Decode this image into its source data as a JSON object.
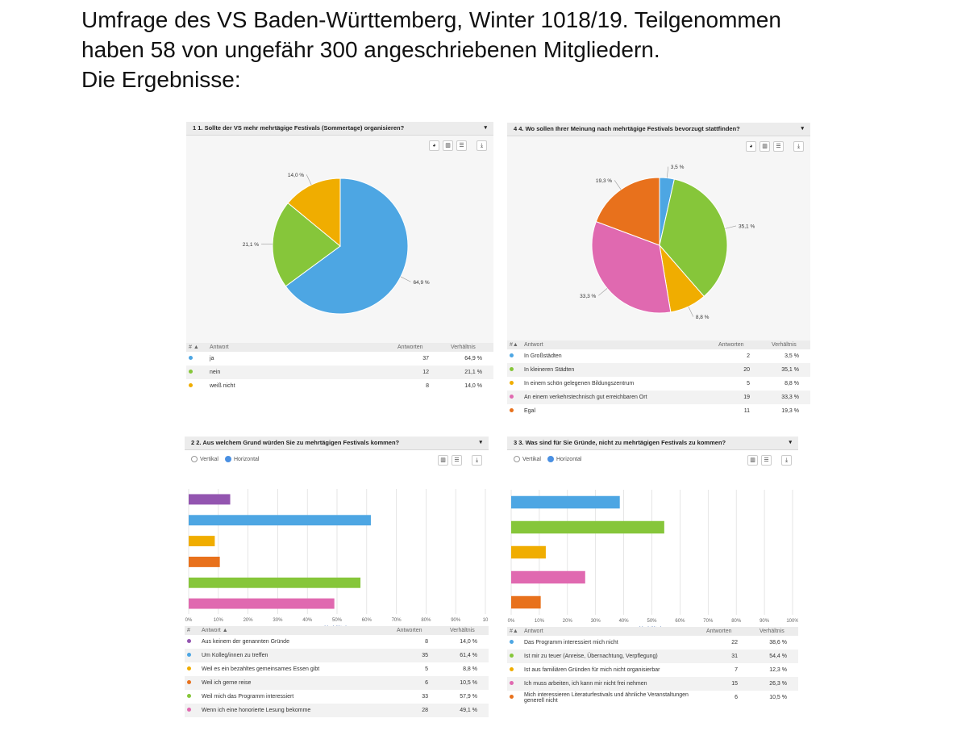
{
  "intro": {
    "line1": "Umfrage des VS Baden-Württemberg, Winter 1018/19. Teilgenommen",
    "line2": "haben 58 von ungefähr 300 angeschriebenen Mitgliedern.",
    "line3": "Die Ergebnisse:"
  },
  "ui": {
    "caret": "▾",
    "pie_icon": "◕",
    "bar_icon": "▥",
    "table_icon": "☰",
    "download_icon": "⤓",
    "vertical": "Vertikal",
    "horizontal": "Horizontal",
    "col_hash": "#",
    "col_answer": "Antwort",
    "col_answers": "Antworten",
    "col_ratio": "Verhältnis",
    "axis_label": "Verhältnis",
    "sort_asc": "▲"
  },
  "chart_data": [
    {
      "type": "pie",
      "title": "1 1. Sollte der VS mehr mehrtägige Festivals (Sommertage) organisieren?",
      "categories": [
        "ja",
        "nein",
        "weiß nicht"
      ],
      "values": [
        37,
        12,
        8
      ],
      "percent_labels": [
        "64,9 %",
        "21,1 %",
        "14,0 %"
      ],
      "colors": [
        "#4da6e3",
        "#86c63a",
        "#f0ad00"
      ]
    },
    {
      "type": "pie",
      "title": "4 4. Wo sollen Ihrer Meinung nach mehrtägige Festivals bevorzugt stattfinden?",
      "categories": [
        "In Großstädten",
        "In kleineren Städten",
        "In einem schön gelegenen Bildungszentrum",
        "An einem verkehrstechnisch gut erreichbaren Ort",
        "Egal"
      ],
      "values": [
        2,
        20,
        5,
        19,
        11
      ],
      "percent_labels": [
        "3,5 %",
        "35,1 %",
        "8,8 %",
        "33,3 %",
        "19,3 %"
      ],
      "colors": [
        "#4da6e3",
        "#86c63a",
        "#f0ad00",
        "#e069b0",
        "#e8711c"
      ]
    },
    {
      "type": "bar",
      "orientation": "horizontal",
      "title": "2 2. Aus welchem Grund würden Sie zu mehrtägigen Festivals kommen?",
      "categories": [
        "Aus keinem der genannten Gründe",
        "Um Kolleg/innen zu treffen",
        "Weil es ein bezahltes gemeinsames Essen gibt",
        "Weil ich gerne reise",
        "Weil mich das Programm interessiert",
        "Wenn ich eine honorierte Lesung bekomme"
      ],
      "values": [
        8,
        35,
        5,
        6,
        33,
        28
      ],
      "percent": [
        14.0,
        61.4,
        8.8,
        10.5,
        57.9,
        49.1
      ],
      "percent_labels": [
        "14,0 %",
        "61,4 %",
        "8,8 %",
        "10,5 %",
        "57,9 %",
        "49,1 %"
      ],
      "colors": [
        "#9355b0",
        "#4da6e3",
        "#f0ad00",
        "#e8711c",
        "#86c63a",
        "#e069b0"
      ],
      "xlim": [
        0,
        100
      ],
      "xticks": [
        "0%",
        "10%",
        "20%",
        "30%",
        "40%",
        "50%",
        "60%",
        "70%",
        "80%",
        "90%",
        "10"
      ]
    },
    {
      "type": "bar",
      "orientation": "horizontal",
      "title": "3 3. Was sind für Sie Gründe, nicht zu mehrtägigen Festivals zu kommen?",
      "categories": [
        "Das Programm interessiert mich nicht",
        "Ist mir zu teuer (Anreise, Übernachtung, Verpflegung)",
        "Ist aus familiären Gründen für mich nicht organisierbar",
        "Ich muss arbeiten, ich kann mir nicht frei nehmen",
        "Mich interessieren Literaturfestivals und ähnliche Veranstaltungen generell nicht"
      ],
      "values": [
        22,
        31,
        7,
        15,
        6
      ],
      "percent": [
        38.6,
        54.4,
        12.3,
        26.3,
        10.5
      ],
      "percent_labels": [
        "38,6 %",
        "54,4 %",
        "12,3 %",
        "26,3 %",
        "10,5 %"
      ],
      "colors": [
        "#4da6e3",
        "#86c63a",
        "#f0ad00",
        "#e069b0",
        "#e8711c"
      ],
      "xlim": [
        0,
        100
      ],
      "xticks": [
        "0%",
        "10%",
        "20%",
        "30%",
        "40%",
        "50%",
        "60%",
        "70%",
        "80%",
        "90%",
        "100%"
      ]
    }
  ]
}
